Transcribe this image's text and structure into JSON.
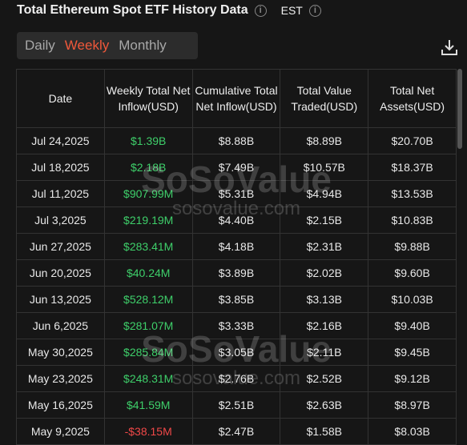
{
  "header": {
    "title": "Total Ethereum Spot ETF History Data",
    "timezone": "EST"
  },
  "tabs": [
    "Daily",
    "Weekly",
    "Monthly"
  ],
  "table": {
    "columns": [
      "Date",
      "Weekly Total Net Inflow(USD)",
      "Cumulative Total Net Inflow(USD)",
      "Total Value Traded(USD)",
      "Total Net Assets(USD)"
    ],
    "rows": [
      [
        "Jul 24,2025",
        "$1.39B",
        "$8.88B",
        "$8.89B",
        "$20.70B"
      ],
      [
        "Jul 18,2025",
        "$2.18B",
        "$7.49B",
        "$10.57B",
        "$18.37B"
      ],
      [
        "Jul 11,2025",
        "$907.99M",
        "$5.31B",
        "$4.94B",
        "$13.53B"
      ],
      [
        "Jul 3,2025",
        "$219.19M",
        "$4.40B",
        "$2.15B",
        "$10.83B"
      ],
      [
        "Jun 27,2025",
        "$283.41M",
        "$4.18B",
        "$2.31B",
        "$9.88B"
      ],
      [
        "Jun 20,2025",
        "$40.24M",
        "$3.89B",
        "$2.02B",
        "$9.60B"
      ],
      [
        "Jun 13,2025",
        "$528.12M",
        "$3.85B",
        "$3.13B",
        "$10.03B"
      ],
      [
        "Jun 6,2025",
        "$281.07M",
        "$3.33B",
        "$2.16B",
        "$9.40B"
      ],
      [
        "May 30,2025",
        "$285.84M",
        "$3.05B",
        "$2.11B",
        "$9.45B"
      ],
      [
        "May 23,2025",
        "$248.31M",
        "$2.76B",
        "$2.52B",
        "$9.12B"
      ],
      [
        "May 16,2025",
        "$41.59M",
        "$2.51B",
        "$2.63B",
        "$8.97B"
      ],
      [
        "May 9,2025",
        "-$38.15M",
        "$2.47B",
        "$1.58B",
        "$8.03B"
      ]
    ]
  },
  "watermark": {
    "brand": "SoSoValue",
    "url": "sosovalue.com"
  }
}
